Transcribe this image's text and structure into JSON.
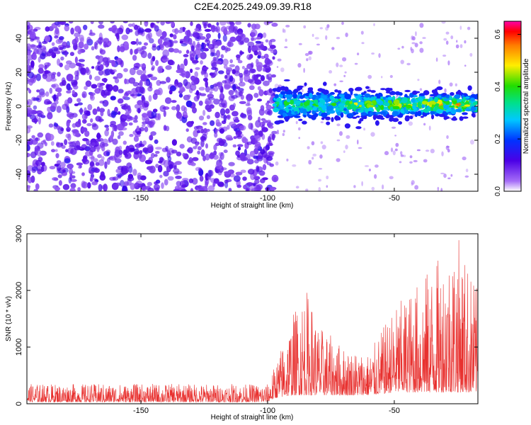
{
  "title": "C2E4.2025.249.09.39.R18",
  "colors": {
    "snr_line": "#e8312f",
    "noise_purple": "#6a00f0",
    "noise_light": "#c9a6f7"
  },
  "chart_data": [
    {
      "type": "heatmap",
      "title": "C2E4.2025.249.09.39.R18",
      "xlabel": "Height of straight line (km)",
      "ylabel": "Frequency (Hz)",
      "xlim": [
        -195,
        -17
      ],
      "ylim": [
        -50,
        50
      ],
      "xticks": [
        -150,
        -100,
        -50
      ],
      "yticks": [
        -40,
        -20,
        0,
        20,
        40
      ],
      "xtick_labels": [
        "-150",
        "-100",
        "-50"
      ],
      "ytick_labels": [
        "-40",
        "-20",
        "0",
        "20",
        "40"
      ],
      "grid": false,
      "noise_region": {
        "x_range": [
          -195,
          -97
        ],
        "y_range": [
          -50,
          50
        ],
        "amplitude": [
          0.05,
          0.15
        ]
      },
      "signal_band": {
        "x_range": [
          -97,
          -17
        ],
        "center_hz": [
          1,
          1
        ],
        "half_width_hz": [
          9,
          6
        ],
        "amplitude": [
          0.15,
          0.62
        ]
      },
      "colorbar": {
        "label": "Normalized spectral amplitude",
        "range": [
          0,
          0.65
        ],
        "ticks": [
          0.0,
          0.2,
          0.4,
          0.6
        ],
        "tick_labels": [
          "0.0",
          "0.2",
          "0.4",
          "0.6"
        ]
      }
    },
    {
      "type": "line",
      "xlabel": "Height of straight line (km)",
      "ylabel": "SNR (10 * v/v)",
      "xlim": [
        -195,
        -17
      ],
      "ylim": [
        0,
        3000
      ],
      "xticks": [
        -150,
        -100,
        -50
      ],
      "yticks": [
        0,
        1000,
        2000,
        3000
      ],
      "xtick_labels": [
        "-150",
        "-100",
        "-50"
      ],
      "ytick_labels": [
        "0",
        "1000",
        "2000",
        "3000"
      ],
      "grid": false,
      "series": [
        {
          "x_range": [
            -195,
            -17
          ],
          "envelope": [
            {
              "x": -195,
              "min": 30,
              "max": 350
            },
            {
              "x": -100,
              "min": 30,
              "max": 350
            },
            {
              "x": -97,
              "min": 100,
              "max": 700
            },
            {
              "x": -90,
              "min": 150,
              "max": 1600
            },
            {
              "x": -85,
              "min": 150,
              "max": 2100
            },
            {
              "x": -80,
              "min": 150,
              "max": 1400
            },
            {
              "x": -70,
              "min": 150,
              "max": 1000
            },
            {
              "x": -60,
              "min": 150,
              "max": 900
            },
            {
              "x": -50,
              "min": 200,
              "max": 1700
            },
            {
              "x": -40,
              "min": 200,
              "max": 2200
            },
            {
              "x": -30,
              "min": 200,
              "max": 2700
            },
            {
              "x": -25,
              "min": 200,
              "max": 3000
            },
            {
              "x": -17,
              "min": 200,
              "max": 2000
            }
          ]
        }
      ]
    }
  ]
}
